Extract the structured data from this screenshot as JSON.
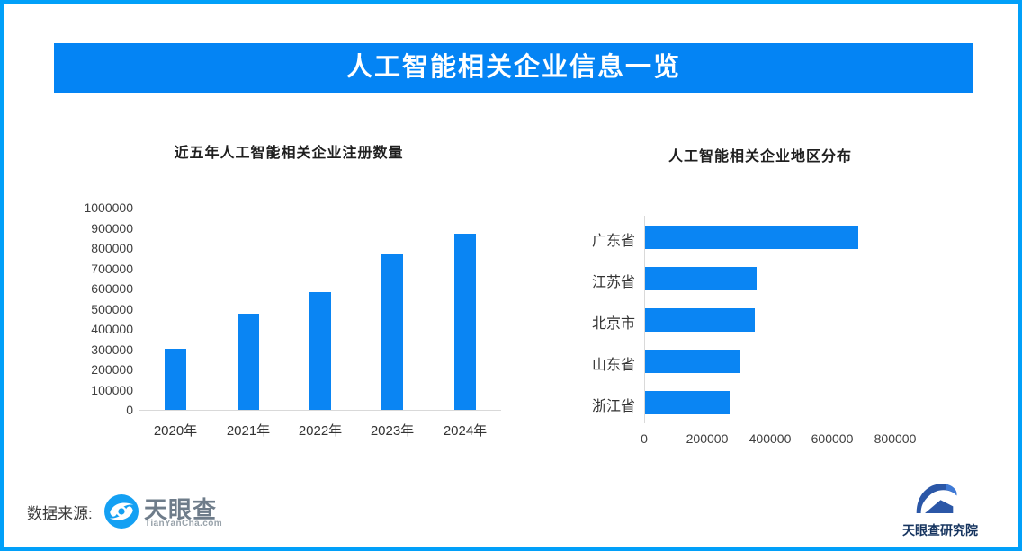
{
  "header": {
    "title": "人工智能相关企业信息一览"
  },
  "colors": {
    "border": "#01a0f9",
    "banner_bg": "#0484f4",
    "banner_text": "#ffffff",
    "bar": "#0a85f3",
    "axis_line": "#d9d9d9",
    "chart_title": "#1f1f1f",
    "axis_label": "#3f3f3f",
    "footer_text": "#3a3a3a",
    "tyc_text": "#6e7c8a",
    "tyc_sub": "#98a2aa",
    "tyc_blue": "#14a0f3",
    "research_blue": "#2b57a7",
    "research_text": "#16345f"
  },
  "chart_data": [
    {
      "type": "bar",
      "title": "近五年人工智能相关企业注册数量",
      "categories": [
        "2020年",
        "2021年",
        "2022年",
        "2023年",
        "2024年"
      ],
      "values": [
        300000,
        475000,
        580000,
        770000,
        870000
      ],
      "ylim": [
        0,
        1000000
      ],
      "ytick_step": 100000,
      "grid": false,
      "legend": false
    },
    {
      "type": "bar",
      "orientation": "horizontal",
      "title": "人工智能相关企业地区分布",
      "categories": [
        "广东省",
        "江苏省",
        "北京市",
        "山东省",
        "浙江省"
      ],
      "values": [
        680000,
        355000,
        350000,
        305000,
        270000
      ],
      "xlim": [
        0,
        1000000
      ],
      "xticks": [
        0,
        200000,
        400000,
        600000,
        800000
      ],
      "grid": false,
      "legend": false
    }
  ],
  "footer": {
    "source_label": "数据来源:",
    "tianyancha": {
      "name": "天眼查",
      "subtext": "TianYanCha.com"
    },
    "research": {
      "name": "天眼查研究院"
    }
  }
}
